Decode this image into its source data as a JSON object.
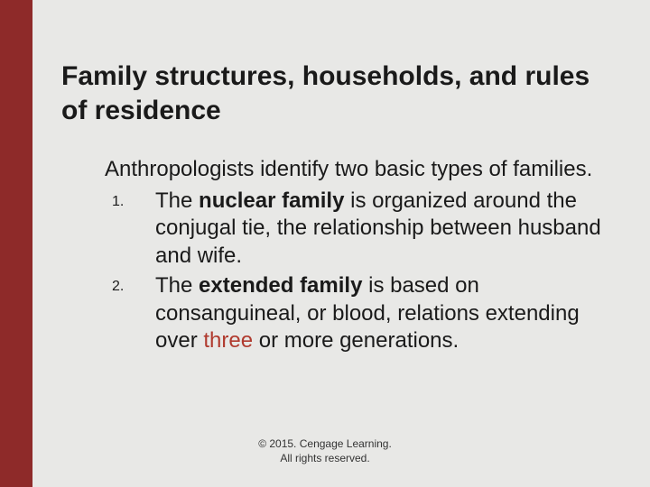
{
  "colors": {
    "sidebar": "#8e2a29",
    "background": "#e8e8e6",
    "text": "#1a1a1a",
    "highlight": "#b03a2e"
  },
  "title": "Family structures, households, and rules of residence",
  "intro": "Anthropologists identify two basic types of families.",
  "items": [
    {
      "num": "1.",
      "pre": "The ",
      "bold": "nuclear family",
      "post": " is organized around the conjugal tie, the relationship between husband and wife."
    },
    {
      "num": "2.",
      "pre": "The ",
      "bold": "extended family",
      "post_a": " is based on consanguineal, or blood, relations extending over ",
      "highlight": "three",
      "post_b": " or more generations."
    }
  ],
  "footer": {
    "line1": "© 2015. Cengage Learning.",
    "line2": "All rights reserved."
  }
}
